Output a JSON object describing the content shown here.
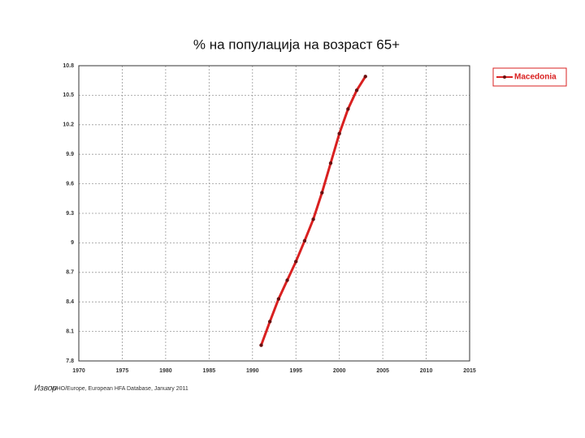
{
  "chart_data": {
    "type": "line",
    "title": "% на популација на возраст 65+",
    "x": [
      1991,
      1992,
      1993,
      1994,
      1995,
      1996,
      1997,
      1998,
      1999,
      2000,
      2001,
      2002,
      2003
    ],
    "series": [
      {
        "name": "Macedonia",
        "color": "#d92020",
        "values": [
          7.96,
          8.2,
          8.43,
          8.62,
          8.81,
          9.02,
          9.24,
          9.51,
          9.81,
          10.11,
          10.36,
          10.55,
          10.69
        ]
      }
    ],
    "xlim": [
      1970,
      2015
    ],
    "xticks": [
      1970,
      1975,
      1980,
      1985,
      1990,
      1995,
      2000,
      2005,
      2010,
      2015
    ],
    "ylim": [
      7.8,
      10.8
    ],
    "yticks": [
      7.8,
      8.1,
      8.4,
      8.7,
      9,
      9.3,
      9.6,
      9.9,
      10.2,
      10.5,
      10.8
    ],
    "grid": true,
    "legend": "right",
    "source_label": "Извор",
    "source": "WHO/Europe, European HFA Database, January 2011"
  }
}
